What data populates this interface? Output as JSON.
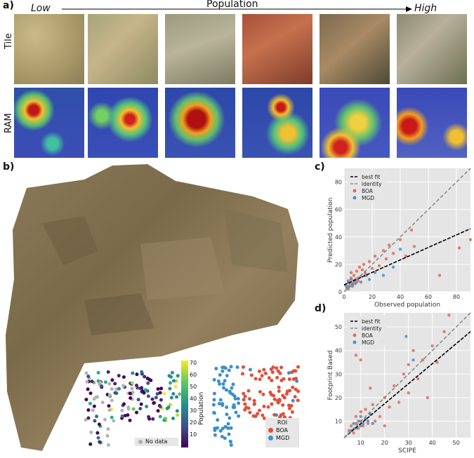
{
  "panel_a": {
    "label": "a)",
    "low": "Low",
    "high": "High",
    "population": "Population",
    "row_tile": "Tile",
    "row_ram": "RAM"
  },
  "panel_b": {
    "label": "b)",
    "colorbar_title": "Population",
    "colorbar_ticks": [
      "10",
      "20",
      "30",
      "40",
      "50",
      "60",
      "70"
    ],
    "nodata_label": "No data",
    "legend_title": "ROI",
    "legend_items": [
      "BOA",
      "MGD"
    ]
  },
  "panel_c": {
    "label": "c)",
    "legend": [
      "best fit",
      "identity",
      "BOA",
      "MGD"
    ],
    "xlabel": "Observed population",
    "ylabel": "Predicted population",
    "xticks": [
      "0",
      "20",
      "40",
      "60",
      "80"
    ],
    "yticks": [
      "0",
      "20",
      "40",
      "60",
      "80"
    ],
    "xlim": [
      0,
      90
    ],
    "ylim": [
      0,
      90
    ],
    "colors": {
      "BOA": "#e06b5a",
      "MGD": "#4a90c8"
    }
  },
  "panel_d": {
    "label": "d)",
    "legend": [
      "best fit",
      "identity",
      "BOA",
      "MGD"
    ],
    "xlabel": "SCIPE",
    "ylabel": "Footprint Based",
    "xticks": [
      "10",
      "20",
      "30",
      "40",
      "50"
    ],
    "yticks": [
      "10",
      "20",
      "30",
      "40",
      "50"
    ],
    "xlim": [
      3,
      56
    ],
    "ylim": [
      3,
      56
    ],
    "colors": {
      "BOA": "#e06b5a",
      "MGD": "#4a90c8"
    }
  },
  "chart_data": [
    {
      "type": "scatter",
      "xlabel": "Observed population",
      "ylabel": "Predicted population",
      "xlim": [
        0,
        90
      ],
      "ylim": [
        0,
        90
      ],
      "grid": true,
      "legend": "top-left",
      "lines": [
        {
          "name": "best fit",
          "x": [
            0,
            90
          ],
          "y": [
            5,
            46
          ]
        },
        {
          "name": "identity",
          "x": [
            0,
            90
          ],
          "y": [
            0,
            90
          ]
        }
      ],
      "series": [
        {
          "name": "BOA",
          "x": [
            2,
            3,
            4,
            5,
            5,
            6,
            7,
            8,
            9,
            10,
            11,
            12,
            14,
            15,
            18,
            20,
            22,
            25,
            28,
            30,
            32,
            35,
            40,
            44,
            48,
            50,
            68,
            82,
            90,
            3,
            6,
            9,
            13,
            16
          ],
          "y": [
            4,
            8,
            6,
            10,
            14,
            6,
            12,
            9,
            15,
            8,
            18,
            11,
            20,
            14,
            22,
            17,
            26,
            19,
            30,
            24,
            34,
            28,
            38,
            26,
            45,
            33,
            12,
            32,
            38,
            2,
            4,
            7,
            16,
            12
          ]
        },
        {
          "name": "MGD",
          "x": [
            1,
            2,
            3,
            4,
            5,
            6,
            7,
            8,
            10,
            12,
            15,
            18,
            22,
            28,
            35,
            40
          ],
          "y": [
            5,
            3,
            7,
            4,
            9,
            5,
            8,
            6,
            10,
            7,
            12,
            9,
            14,
            12,
            18,
            31
          ]
        }
      ]
    },
    {
      "type": "scatter",
      "xlabel": "SCIPE",
      "ylabel": "Footprint Based",
      "xlim": [
        3,
        56
      ],
      "ylim": [
        3,
        56
      ],
      "grid": true,
      "legend": "top-left",
      "lines": [
        {
          "name": "best fit",
          "x": [
            3,
            56
          ],
          "y": [
            3,
            48
          ]
        },
        {
          "name": "identity",
          "x": [
            3,
            56
          ],
          "y": [
            3,
            56
          ]
        }
      ],
      "series": [
        {
          "name": "BOA",
          "x": [
            5,
            6,
            7,
            8,
            8,
            9,
            10,
            10,
            11,
            12,
            12,
            13,
            14,
            15,
            16,
            18,
            19,
            20,
            22,
            24,
            26,
            28,
            30,
            30,
            32,
            34,
            36,
            38,
            40,
            42,
            45,
            47,
            8,
            10,
            14,
            20
          ],
          "y": [
            6,
            8,
            5,
            9,
            12,
            7,
            10,
            14,
            8,
            11,
            15,
            9,
            13,
            17,
            10,
            12,
            44,
            20,
            16,
            25,
            18,
            30,
            34,
            22,
            40,
            28,
            36,
            20,
            42,
            35,
            48,
            55,
            38,
            36,
            24,
            8
          ]
        },
        {
          "name": "MGD",
          "x": [
            6,
            7,
            8,
            9,
            10,
            10,
            11,
            12,
            13,
            14,
            15,
            29,
            32
          ],
          "y": [
            6,
            9,
            7,
            10,
            8,
            12,
            9,
            11,
            10,
            13,
            9,
            46,
            36
          ]
        }
      ]
    }
  ]
}
